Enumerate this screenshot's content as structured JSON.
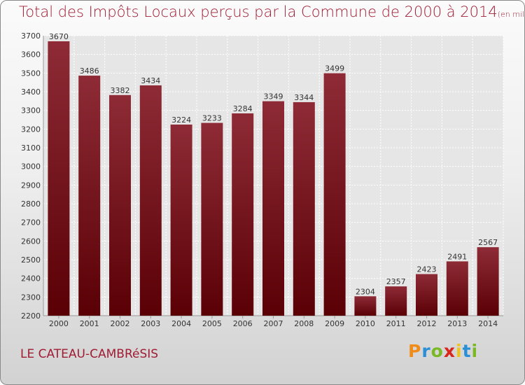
{
  "title_main": "Total des Impôts Locaux perçus par la Commune de 2000 à 2014",
  "title_unit": "(en milliers d'€)",
  "commune": "LE CATEAU-CAMBRéSIS",
  "logo_letters": [
    {
      "ch": "P",
      "color": "#f08c1a"
    },
    {
      "ch": "r",
      "color": "#2b8fd6"
    },
    {
      "ch": "o",
      "color": "#7bb825"
    },
    {
      "ch": "x",
      "color": "#d9261c"
    },
    {
      "ch": "i",
      "color": "#f0c419"
    },
    {
      "ch": "t",
      "color": "#2b8fd6"
    },
    {
      "ch": "i",
      "color": "#7bb825"
    }
  ],
  "colors": {
    "bar_top": "#8e2b36",
    "bar_bottom": "#5a0005",
    "text_accent": "#a01c33"
  },
  "chart_data": {
    "type": "bar",
    "title": "Total des Impôts Locaux perçus par la Commune de 2000 à 2014",
    "categories": [
      "2000",
      "2001",
      "2002",
      "2003",
      "2004",
      "2005",
      "2006",
      "2007",
      "2008",
      "2009",
      "2010",
      "2011",
      "2012",
      "2013",
      "2014"
    ],
    "values": [
      3670,
      3486,
      3382,
      3434,
      3224,
      3233,
      3284,
      3349,
      3344,
      3499,
      2304,
      2357,
      2423,
      2491,
      2567
    ],
    "ylim": [
      2200,
      3700
    ],
    "yticks": [
      2200,
      2300,
      2400,
      2500,
      2600,
      2700,
      2800,
      2900,
      3000,
      3100,
      3200,
      3300,
      3400,
      3500,
      3600,
      3700
    ],
    "grid": true,
    "xlabel": "",
    "ylabel": ""
  }
}
